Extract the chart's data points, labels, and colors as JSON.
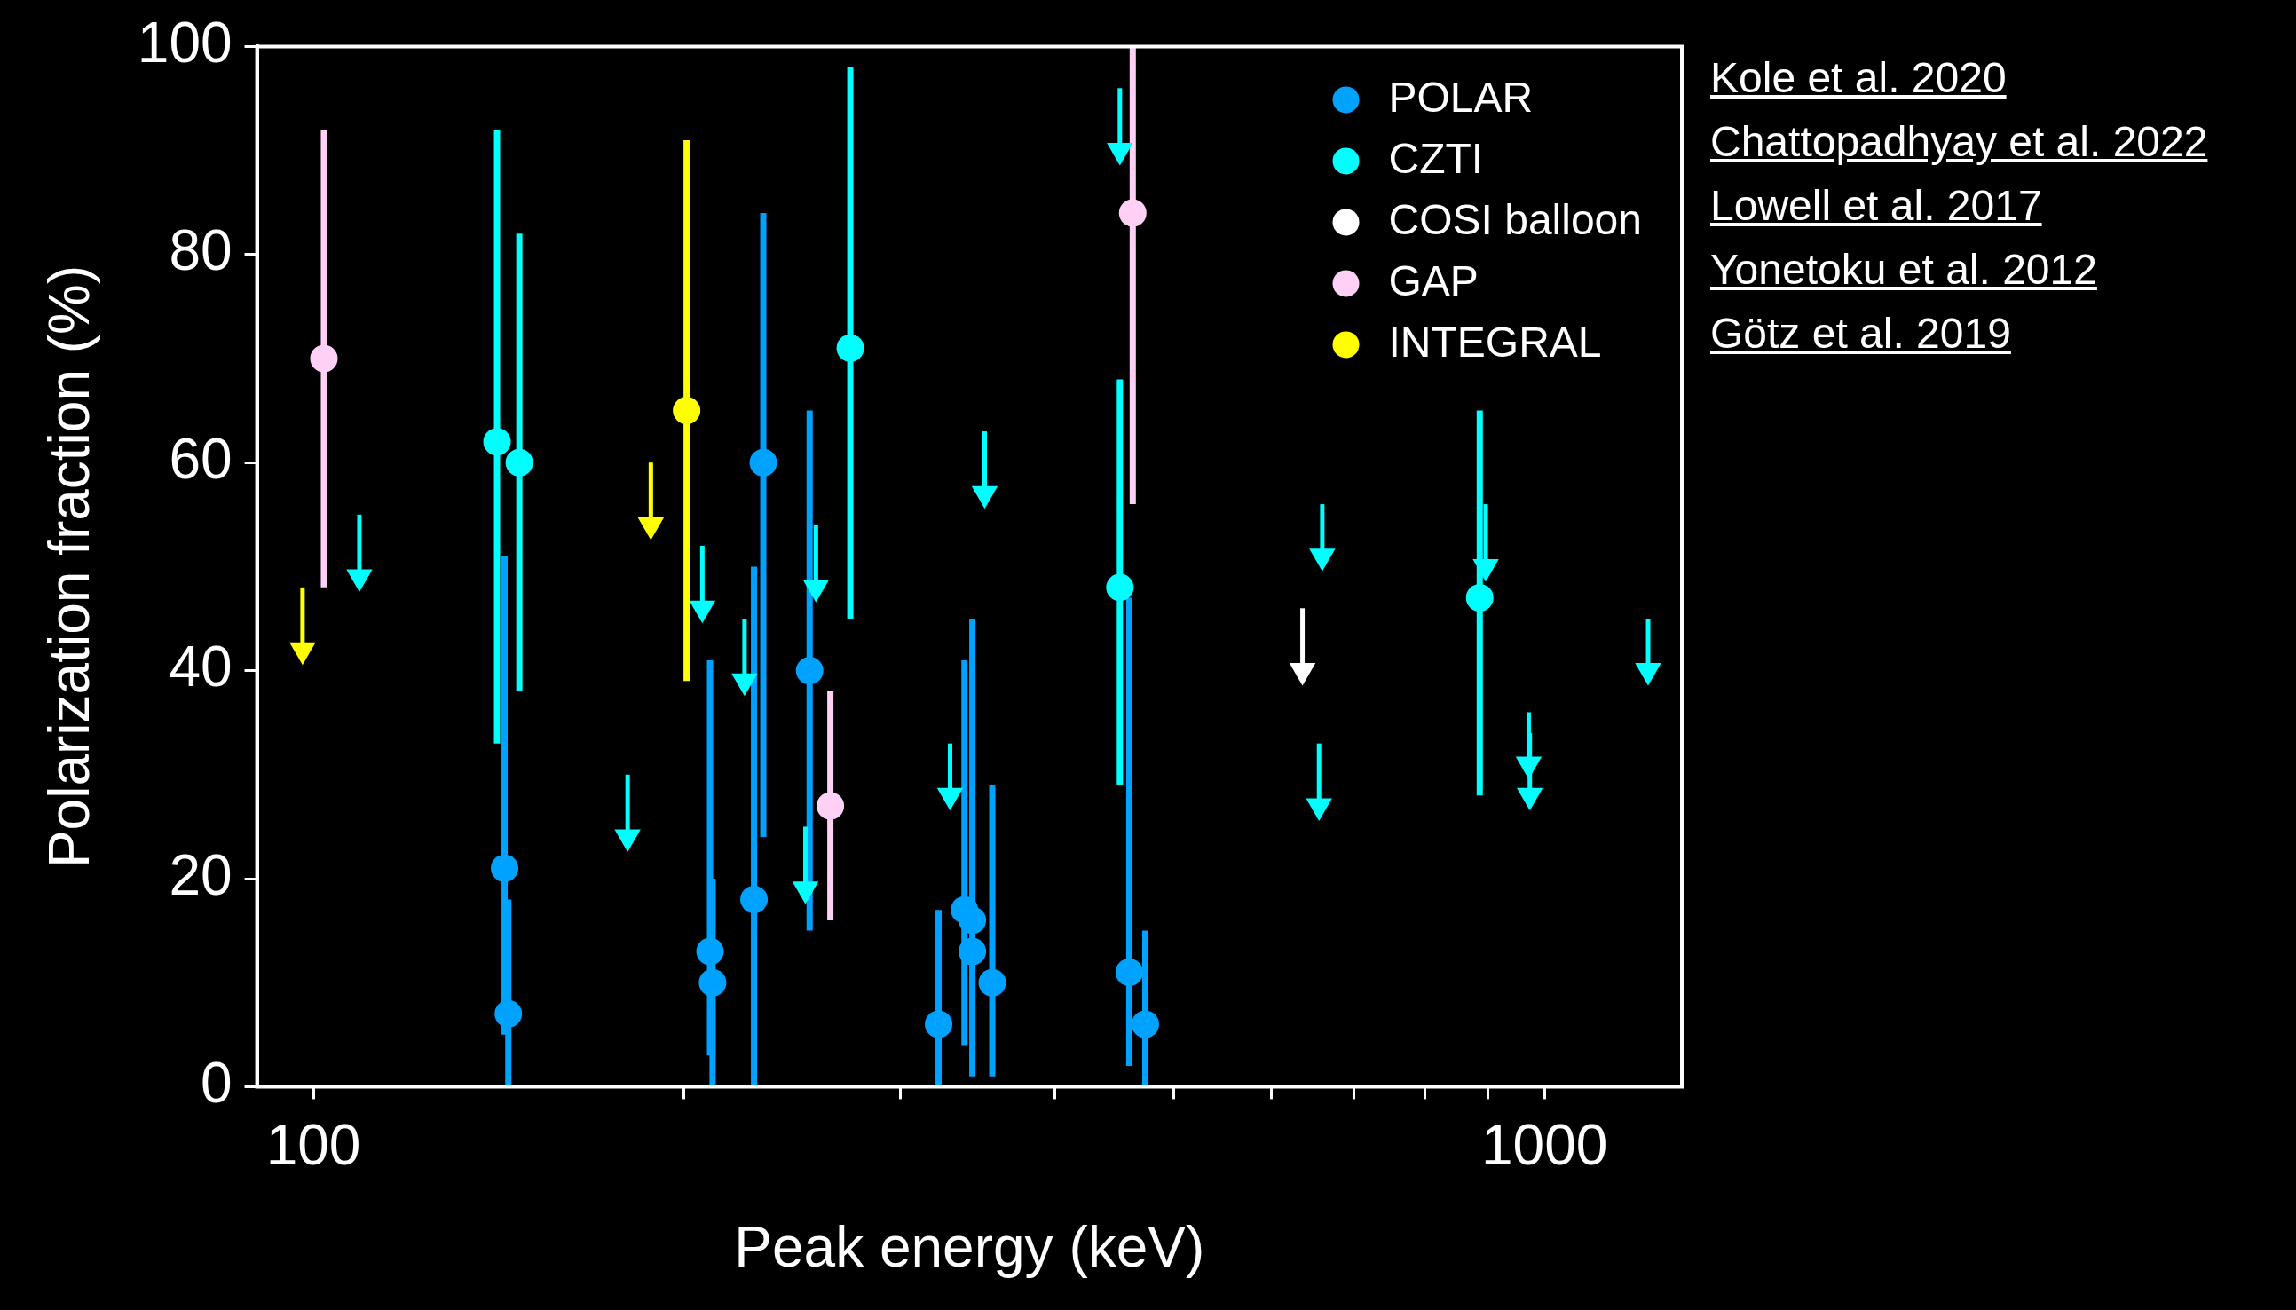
{
  "chart_data": {
    "type": "scatter",
    "xlabel": "Peak energy (keV)",
    "ylabel": "Polarization fraction (%)",
    "xlim": [
      90,
      1293
    ],
    "ylim": [
      0,
      100
    ],
    "log": "x",
    "legend": "top right",
    "marker": "circle",
    "grid": false,
    "xticks": [
      100,
      {
        "value": 200,
        "label": null
      },
      {
        "value": 300,
        "label": null
      },
      {
        "value": 400,
        "label": null
      },
      {
        "value": 500,
        "label": null
      },
      {
        "value": 600,
        "label": null
      },
      {
        "value": 700,
        "label": null
      },
      {
        "value": 800,
        "label": null
      },
      {
        "value": 900,
        "label": null
      },
      1000
    ],
    "yticks": [
      0,
      20,
      40,
      60,
      80,
      100
    ],
    "annotations": [
      "Kole et al. 2020",
      "Chattopadhyay et al. 2022",
      "Lowell et al. 2017",
      "Yonetoku et al. 2012",
      "Götz et al. 2019"
    ],
    "series": [
      {
        "name": "POLAR",
        "color": "#00a2ff",
        "x": [
          143,
          144,
          210,
          211,
          228,
          232,
          253,
          322,
          338,
          343,
          343,
          356,
          460,
          474
        ],
        "values": [
          21,
          7,
          13,
          10,
          18,
          60,
          40,
          6,
          17,
          16,
          13,
          10,
          11,
          6
        ],
        "errors": [
          [
            5,
            51
          ],
          [
            0,
            18
          ],
          [
            3,
            41
          ],
          [
            0,
            20
          ],
          [
            0,
            50
          ],
          [
            24,
            84
          ],
          [
            15,
            65
          ],
          [
            0,
            17
          ],
          [
            4,
            41
          ],
          null,
          [
            1,
            45
          ],
          [
            1,
            29
          ],
          [
            2,
            47
          ],
          [
            0,
            15
          ]
        ]
      },
      {
        "name": "CZTI",
        "color": "#00ffff",
        "x": [
          141,
          147,
          273,
          452,
          886
        ],
        "values": [
          62,
          60,
          71,
          48,
          47
        ],
        "errors": [
          [
            33,
            92
          ],
          [
            38,
            82
          ],
          [
            45,
            98
          ],
          [
            29,
            68
          ],
          [
            28,
            65
          ]
        ]
      },
      {
        "name": "COSI balloon",
        "color": "#ffffff",
        "marker": "triangle",
        "x": [
          636
        ],
        "values": [
          40
        ],
        "errors": [
          [
            40,
            46
          ]
        ]
      },
      {
        "name": "GAP",
        "color": "#ffd0f5",
        "x": [
          102,
          263,
          463
        ],
        "values": [
          70,
          27,
          84
        ],
        "errors": [
          [
            48,
            92
          ],
          [
            16,
            38
          ],
          [
            56,
            100
          ]
        ]
      },
      {
        "name": "INTEGRAL",
        "color": "#ffff00",
        "x": [
          201
        ],
        "values": [
          65
        ],
        "errors": [
          [
            39,
            91
          ]
        ]
      },
      {
        "color": "#00ffff",
        "marker": "triangle",
        "x": [
          109,
          180,
          207,
          224,
          251,
          256,
          329,
          351,
          452,
          660,
          656,
          896,
          971,
          973,
          1214
        ],
        "values": [
          49,
          24,
          46,
          39,
          19,
          48,
          28,
          57,
          90,
          51,
          27,
          50,
          31,
          28,
          40
        ],
        "errors": [
          [
            49,
            55
          ],
          [
            24,
            30
          ],
          [
            46,
            52
          ],
          [
            39,
            45
          ],
          [
            19,
            25
          ],
          [
            48,
            54
          ],
          [
            28,
            33
          ],
          [
            57,
            63
          ],
          [
            90,
            96
          ],
          [
            51,
            56
          ],
          [
            27,
            33
          ],
          [
            50,
            56
          ],
          [
            31,
            36
          ],
          [
            28,
            34
          ],
          [
            40,
            45
          ]
        ]
      },
      {
        "color": "#ffff00",
        "marker": "triangle",
        "x": [
          98,
          188
        ],
        "values": [
          42,
          54
        ],
        "errors": [
          [
            42,
            48
          ],
          [
            54,
            60
          ]
        ]
      }
    ]
  }
}
